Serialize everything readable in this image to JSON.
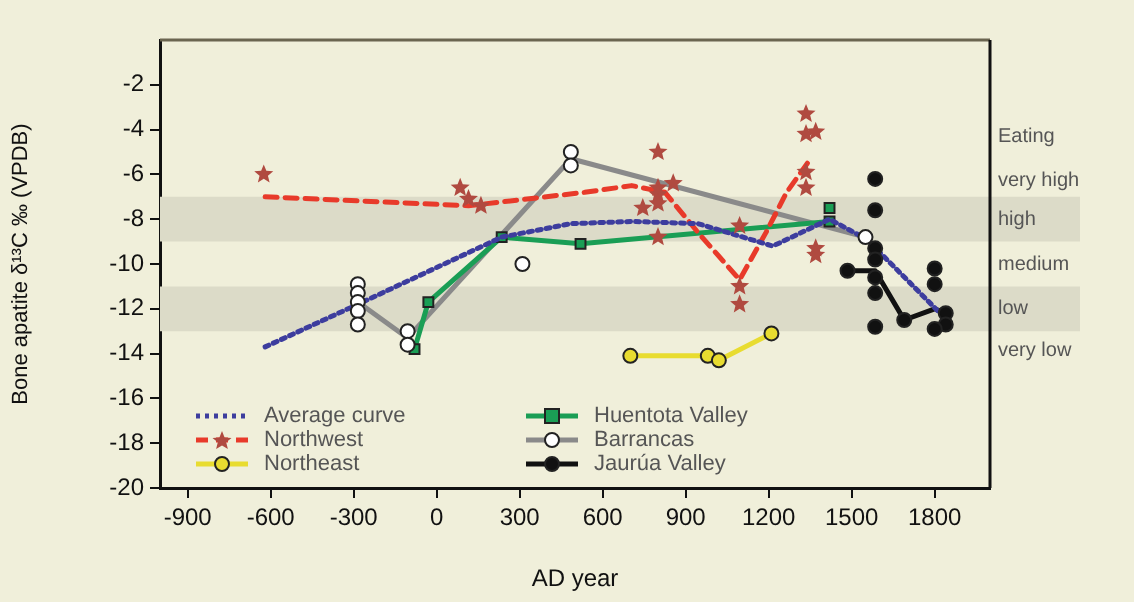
{
  "chart_data": {
    "type": "scatter",
    "xlabel": "AD year",
    "ylabel": "Bone apatite δ¹³C ‰ (VPDB)",
    "xlim": [
      -1000,
      2000
    ],
    "xticks": [
      -900,
      -600,
      -300,
      0,
      300,
      600,
      900,
      1200,
      1500,
      1800
    ],
    "ylim": [
      -20,
      0
    ],
    "yticks": [
      -20,
      -18,
      -16,
      -14,
      -12,
      -10,
      -8,
      -6,
      -4,
      -2
    ],
    "grid": false,
    "legend": "bottom left",
    "bands": [
      {
        "axis": "y",
        "from": -9,
        "to": -7,
        "label": "high",
        "color": "#dcdbc8"
      },
      {
        "axis": "y",
        "from": -13,
        "to": -11,
        "label": "low",
        "color": "#dcdbc8"
      }
    ],
    "annotations": [
      "Eating",
      "very high",
      "medium",
      "very low"
    ],
    "series": [
      {
        "name": "Average curve",
        "type": "line",
        "color": "#3d3d9e",
        "line_style": "dotted",
        "marker": "none",
        "x": [
          -620,
          -285,
          235,
          485,
          705,
          945,
          1215,
          1420,
          1555,
          1820
        ],
        "values": [
          -13.7,
          -11.8,
          -8.8,
          -8.2,
          -8.1,
          -8.2,
          -9.2,
          -8.0,
          -8.9,
          -12.2
        ]
      },
      {
        "name": "Northwest",
        "type": "line",
        "color": "#e83a2a",
        "line_style": "dashed",
        "marker": "none",
        "x": [
          -620,
          115,
          535,
          705,
          825,
          945,
          1095,
          1190,
          1265,
          1340
        ],
        "values": [
          -7.0,
          -7.4,
          -6.8,
          -6.5,
          -6.8,
          -8.6,
          -10.7,
          -8.6,
          -6.8,
          -5.5
        ]
      },
      {
        "color": "#b04a40",
        "marker": "star",
        "x": [
          -625,
          85,
          115,
          160,
          800,
          800,
          800,
          800,
          855,
          745,
          800,
          1095,
          1095,
          1095,
          1335,
          1335,
          1370,
          1335,
          1335,
          1370,
          1370
        ],
        "values": [
          -6.0,
          -6.6,
          -7.1,
          -7.4,
          -5.0,
          -6.6,
          -6.9,
          -7.3,
          -6.4,
          -7.5,
          -8.8,
          -8.3,
          -11.0,
          -11.8,
          -3.3,
          -4.2,
          -4.1,
          -5.9,
          -6.6,
          -9.3,
          -9.6
        ]
      },
      {
        "name": "Northeast",
        "type": "line",
        "color": "#e8dc30",
        "line_style": "solid",
        "marker": "circle",
        "x": [
          700,
          980,
          1020,
          1210
        ],
        "values": [
          -14.1,
          -14.1,
          -14.3,
          -13.1
        ]
      },
      {
        "name": "Huentota Valley",
        "type": "line",
        "color": "#1a9e55",
        "line_style": "solid",
        "marker": "square",
        "x": [
          -80,
          -30,
          235,
          520,
          1420
        ],
        "values": [
          -13.8,
          -11.7,
          -8.8,
          -9.1,
          -8.1
        ]
      },
      {
        "color": "#1a9e55",
        "marker": "square",
        "x": [
          1420
        ],
        "values": [
          -7.5
        ]
      },
      {
        "name": "Barrancas",
        "type": "line",
        "color": "#8a8a8a",
        "line_style": "solid",
        "marker": "none",
        "x": [
          -285,
          -105,
          485,
          1550
        ],
        "values": [
          -11.7,
          -13.3,
          -5.3,
          -8.8
        ]
      },
      {
        "color": "#ffffff",
        "marker": "circle",
        "x": [
          -285,
          -285,
          -285,
          -285,
          -285,
          -105,
          -105,
          310,
          485,
          485,
          1550
        ],
        "values": [
          -10.9,
          -11.3,
          -11.7,
          -12.1,
          -12.7,
          -13.0,
          -13.6,
          -10.0,
          -5.0,
          -5.6,
          -8.8
        ]
      },
      {
        "name": "Jaurúa Valley",
        "type": "line",
        "color": "#111111",
        "line_style": "solid",
        "marker": "none",
        "x": [
          1485,
          1585,
          1690,
          1800,
          1840
        ],
        "values": [
          -10.3,
          -10.3,
          -12.5,
          -12.0,
          -12.2
        ]
      },
      {
        "color": "#111111",
        "marker": "circle",
        "x": [
          1585,
          1585,
          1585,
          1585,
          1585,
          1585,
          1585,
          1485,
          1690,
          1800,
          1800,
          1840,
          1840,
          1800
        ],
        "values": [
          -6.2,
          -7.6,
          -9.3,
          -9.8,
          -10.6,
          -11.3,
          -12.8,
          -10.3,
          -12.5,
          -10.2,
          -10.9,
          -12.2,
          -12.7,
          -12.9
        ]
      }
    ]
  }
}
